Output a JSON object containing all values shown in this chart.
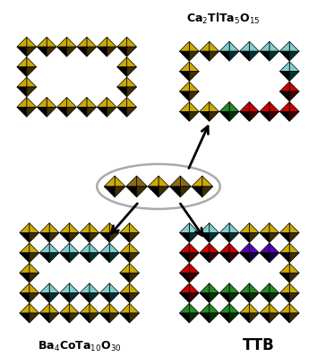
{
  "background_color": "#ffffff",
  "yel": "#ccaa00",
  "yel_dark": "#3d2e00",
  "dk": "#8B6914",
  "cya": "#7fcfcf",
  "cya_dark": "#003333",
  "grn": "#228b22",
  "grn_dark": "#003300",
  "red": "#cc0000",
  "red_dark": "#440000",
  "pur": "#5500bb",
  "pur_dark": "#1a0044",
  "blk": "#000000",
  "label_tr": "Ca$_2$TlTa$_5$O$_{15}$",
  "label_bl": "Ba$_4$CoTa$_{10}$O$_{30}$",
  "label_br": "TTB",
  "label_fontsize": 9,
  "label_fontsize_ttb": 12,
  "ellipse_color": "#aaaaaa"
}
